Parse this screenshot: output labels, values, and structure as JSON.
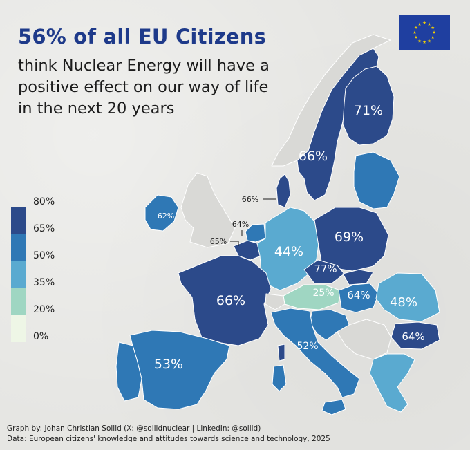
{
  "header": {
    "title": "56% of all EU Citizens",
    "subtitle_lines": [
      "think Nuclear Energy will have a",
      "positive effect on our way of life",
      "in the next 20 years"
    ]
  },
  "legend": {
    "labels": [
      "80%",
      "65%",
      "50%",
      "35%",
      "20%",
      "0%"
    ],
    "colors": [
      "#2c4a8a",
      "#2f78b5",
      "#5aaad0",
      "#9fd6c2",
      "#eef6e6"
    ]
  },
  "colors": {
    "band_65_80": "#2c4a8a",
    "band_50_65": "#2f78b5",
    "band_35_50": "#5aaad0",
    "band_20_35": "#9fd6c2",
    "title": "#1e3a8a",
    "flag_blue": "#1f3fa0",
    "flag_star": "#f5d000"
  },
  "map_labels": {
    "finland": "71%",
    "sweden": "66%",
    "denmark": "66%",
    "ireland": "62%",
    "netherlands": "64%",
    "belgium": "65%",
    "germany": "44%",
    "poland": "69%",
    "czechia": "77%",
    "austria": "25%",
    "hungary": "64%",
    "romania": "48%",
    "bulgaria": "64%",
    "france": "66%",
    "italy": "52%",
    "spain": "53%"
  },
  "footer": {
    "credit": "Graph by: Johan Christian Sollid (X: @sollidnuclear | LinkedIn: @sollid)",
    "source": "Data: European citizens' knowledge and attitudes towards science and technology, 2025"
  }
}
